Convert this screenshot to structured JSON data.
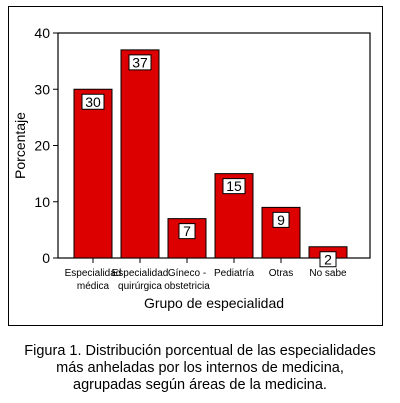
{
  "chart_data": {
    "type": "bar",
    "categories": [
      [
        "Especialidad",
        "médica"
      ],
      [
        "Especialidad",
        "quirúrgica"
      ],
      [
        "Gíneco -",
        "obstetricia"
      ],
      [
        "Pediatría"
      ],
      [
        "Otras"
      ],
      [
        "No sabe"
      ]
    ],
    "values": [
      30,
      37,
      7,
      15,
      9,
      2
    ],
    "data_labels": [
      "30",
      "37",
      "7",
      "15",
      "9",
      "2"
    ],
    "xlabel": "Grupo de especialidad",
    "ylabel": "Porcentaje",
    "ylim": [
      0,
      40
    ],
    "yticks": [
      "0",
      "10",
      "20",
      "30",
      "40"
    ],
    "grid": false,
    "bar_color": "#dd0000"
  },
  "caption": {
    "line1": "Figura 1. Distribución porcentual de las especialidades",
    "line2": "más anheladas por los internos de medicina,",
    "line3": "agrupadas según áreas de la medicina."
  }
}
